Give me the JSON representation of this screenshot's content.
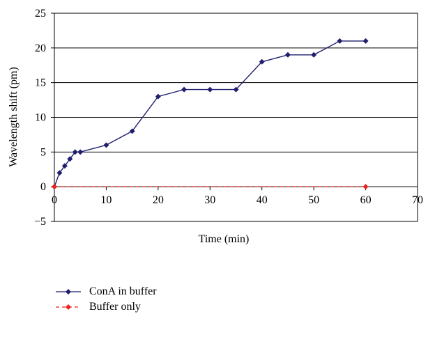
{
  "chart_data": {
    "type": "line",
    "xlabel": "Time (min)",
    "ylabel": "Wavelength shift (pm)",
    "xlim": [
      0,
      70
    ],
    "ylim": [
      -5,
      25
    ],
    "xticks": [
      0,
      10,
      20,
      30,
      40,
      50,
      60,
      70
    ],
    "yticks": [
      -5,
      0,
      5,
      10,
      15,
      20,
      25
    ],
    "xtick_labels": [
      "0",
      "10",
      "20",
      "30",
      "40",
      "50",
      "60",
      "70"
    ],
    "ytick_labels": [
      "−5",
      "0",
      "5",
      "10",
      "15",
      "20",
      "25"
    ],
    "grid": "horizontal",
    "legend_position": "bottom-left",
    "series": [
      {
        "name": "ConA in buffer",
        "color": "#1f1f6e",
        "line": "solid",
        "marker": "diamond",
        "x": [
          0,
          1,
          2,
          3,
          4,
          5,
          10,
          15,
          20,
          25,
          30,
          35,
          40,
          45,
          50,
          55,
          60
        ],
        "y": [
          0,
          2,
          3,
          4,
          5,
          5,
          6,
          8,
          13,
          14,
          14,
          14,
          18,
          19,
          19,
          21,
          21
        ]
      },
      {
        "name": "Buffer only",
        "color": "#e8231d",
        "line": "dashed",
        "marker": "diamond",
        "x": [
          0,
          60
        ],
        "y": [
          0,
          0
        ]
      }
    ]
  }
}
